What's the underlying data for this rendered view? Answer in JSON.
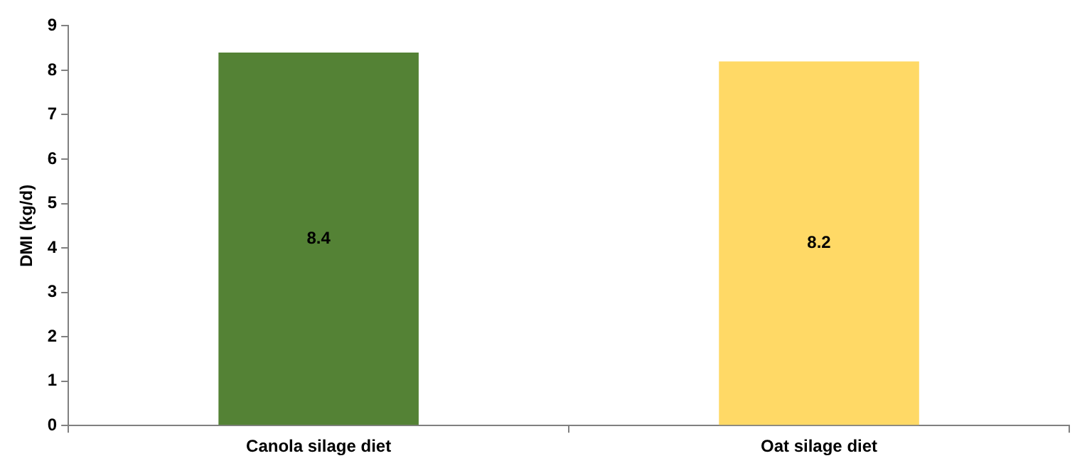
{
  "chart_data": {
    "type": "bar",
    "ylabel": "DMI (kg/d)",
    "categories": [
      "Canola silage diet",
      "Oat silage diet"
    ],
    "values": [
      8.4,
      8.2
    ],
    "colors": [
      "#548235",
      "#ffd966"
    ],
    "ylim": [
      0,
      9
    ],
    "yticks": [
      0,
      1,
      2,
      3,
      4,
      5,
      6,
      7,
      8,
      9
    ],
    "data_labels": true,
    "grid": false,
    "legend": false
  }
}
